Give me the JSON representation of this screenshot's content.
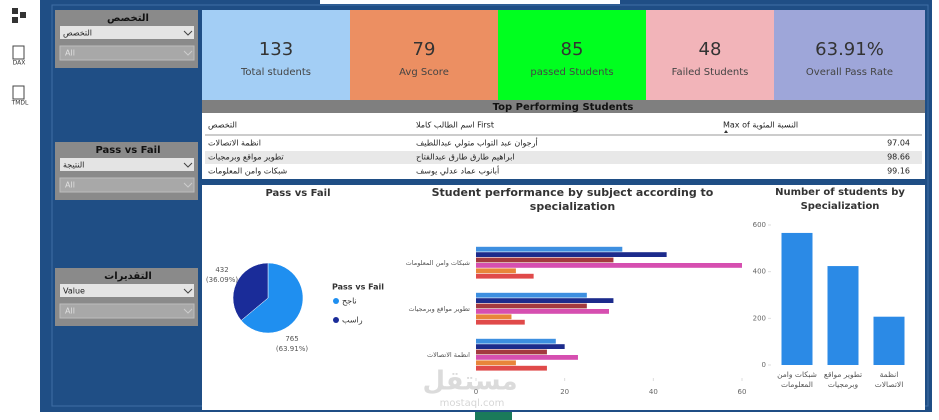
{
  "toolbar": {
    "items": [
      "DAX",
      "TMDL"
    ]
  },
  "slicers": [
    {
      "title": "التخصص",
      "dropdown": "التخصص",
      "value": "All"
    },
    {
      "title": "Pass vs Fail",
      "dropdown": "النتيجة",
      "value": "All"
    },
    {
      "title": "التقديرات",
      "dropdown": "Value",
      "value": "All"
    }
  ],
  "kpis": [
    {
      "value": 133,
      "label": "Total students",
      "color": "#a3cef5"
    },
    {
      "value": 79,
      "label": "Avg Score",
      "color": "#ec8f62"
    },
    {
      "value": 85,
      "label": "passed Students",
      "color": "#00ff1f"
    },
    {
      "value": 48,
      "label": "Failed Students",
      "color": "#f2b4b9"
    },
    {
      "value": 63.91,
      "value_label": "63.91%",
      "label": "Overall Pass Rate",
      "color": "#9ea6d9"
    }
  ],
  "table": {
    "title": "Top Performing Students",
    "columns": [
      "التخصص",
      "اسم الطالب كاملا First",
      "Max of النسبة المئوية"
    ],
    "rows": [
      [
        "انظمة الاتصالات",
        "أرجوان عبد التواب متولي عبداللطيف",
        97.04
      ],
      [
        "تطوير مواقع وبرمجيات",
        "ابراهيم طارق طارق عبدالفتاح",
        98.66
      ],
      [
        "شبكات وامن المعلومات",
        "أبانوب عماد عدلي يوسف",
        99.16
      ]
    ]
  },
  "chart_data": [
    {
      "type": "pie",
      "title": "Pass vs Fail",
      "legend_title": "Pass vs Fail",
      "legend": "right",
      "categories": [
        "ناجح",
        "راسب"
      ],
      "values": [
        765,
        432
      ],
      "percent_labels": [
        "(63.91%)",
        "(36.09%)"
      ],
      "colors": [
        "#1f8ff0",
        "#1a2c99"
      ]
    },
    {
      "type": "bar",
      "orientation": "horizontal",
      "title": "Student performance by subject according to specialization",
      "categories": [
        "شبكات وامن المعلومات",
        "تطوير مواقع وبرمجيات",
        "انظمة الاتصالات"
      ],
      "series": [
        {
          "color": "#3d8fe0",
          "values": [
            33,
            25,
            18
          ]
        },
        {
          "color": "#1c2b8c",
          "values": [
            43,
            31,
            20
          ]
        },
        {
          "color": "#a33a3f",
          "values": [
            31,
            25,
            16
          ]
        },
        {
          "color": "#d64fb0",
          "values": [
            60,
            30,
            23
          ]
        },
        {
          "color": "#e8853a",
          "values": [
            9,
            8,
            9
          ]
        },
        {
          "color": "#e04a4a",
          "values": [
            13,
            11,
            16
          ]
        }
      ],
      "xlim": [
        0,
        60
      ],
      "xticks": [
        0,
        20,
        40,
        60
      ]
    },
    {
      "type": "bar",
      "title": "Number of students by Specialization",
      "categories": [
        "شبكات وامن المعلومات",
        "تطوير مواقع وبرمجيات",
        "انظمة الاتصالات"
      ],
      "values": [
        566,
        424,
        207
      ],
      "color": "#2b8ae6",
      "ylim": [
        0,
        600
      ],
      "yticks": [
        0,
        200,
        400,
        600
      ]
    }
  ],
  "watermark": {
    "text": "مستقل",
    "url": "mostaql.com"
  }
}
